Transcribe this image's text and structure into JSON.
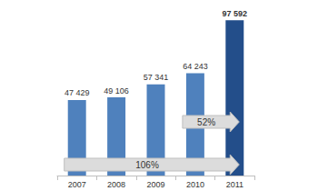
{
  "chart_data": {
    "type": "bar",
    "categories": [
      "2007",
      "2008",
      "2009",
      "2010",
      "2011"
    ],
    "values": [
      47429,
      49106,
      57341,
      64243,
      97592
    ],
    "value_labels": [
      "47 429",
      "49 106",
      "57 341",
      "64 243",
      "97 592"
    ],
    "colors": [
      "#4f81bd",
      "#4f81bd",
      "#4f81bd",
      "#4f81bd",
      "#234e8a"
    ],
    "ylim": [
      0,
      100000
    ],
    "yticks": [
      0,
      100000
    ],
    "grid": false,
    "data_labels": true,
    "tick_labels": "x",
    "annotations": [
      {
        "text": "52%",
        "from": "2010",
        "to": "2011"
      },
      {
        "text": "106%",
        "from": "2007",
        "to": "2011"
      }
    ]
  }
}
